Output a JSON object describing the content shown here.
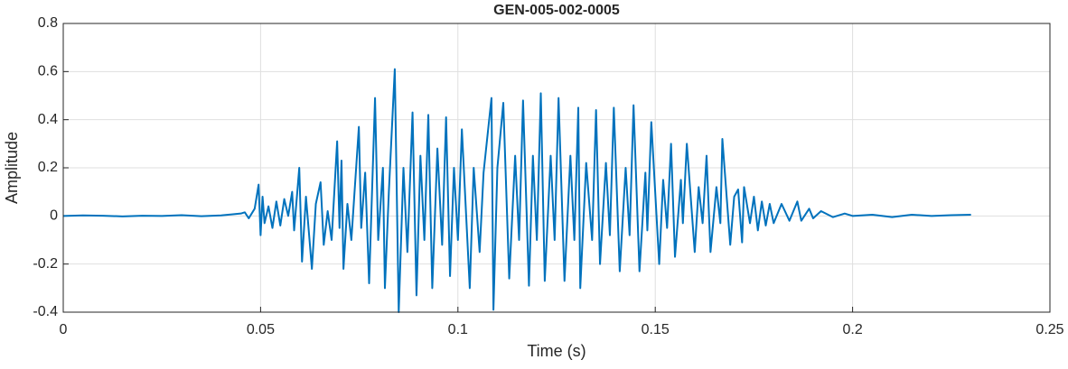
{
  "chart_data": {
    "type": "line",
    "title": "GEN-005-002-0005",
    "x_label": "Time (s)",
    "y_label": "Amplitude",
    "color": "#0072bd",
    "grid": true,
    "xlim": [
      0,
      0.25
    ],
    "xticks": [
      0,
      0.05,
      0.1,
      0.15,
      0.2,
      0.25
    ],
    "ylim": [
      -0.4,
      0.8
    ],
    "yticks": [
      -0.4,
      -0.2,
      0,
      0.2,
      0.4,
      0.6,
      0.8
    ],
    "x": [
      0,
      0.005,
      0.01,
      0.015,
      0.02,
      0.025,
      0.03,
      0.035,
      0.04,
      0.045,
      0.046,
      0.047,
      0.0485,
      0.0495,
      0.05,
      0.0505,
      0.051,
      0.052,
      0.053,
      0.054,
      0.055,
      0.056,
      0.057,
      0.058,
      0.0585,
      0.0598,
      0.0605,
      0.0615,
      0.063,
      0.064,
      0.0652,
      0.066,
      0.067,
      0.068,
      0.0694,
      0.07,
      0.0705,
      0.071,
      0.072,
      0.073,
      0.0749,
      0.0755,
      0.0765,
      0.0775,
      0.079,
      0.0798,
      0.081,
      0.0815,
      0.0825,
      0.084,
      0.085,
      0.0862,
      0.0872,
      0.0885,
      0.0895,
      0.0905,
      0.0915,
      0.0925,
      0.0935,
      0.0948,
      0.096,
      0.097,
      0.098,
      0.099,
      0.1,
      0.101,
      0.103,
      0.104,
      0.1055,
      0.1065,
      0.1085,
      0.109,
      0.11,
      0.1115,
      0.113,
      0.1145,
      0.1155,
      0.1165,
      0.118,
      0.119,
      0.12,
      0.121,
      0.122,
      0.1235,
      0.1245,
      0.1255,
      0.127,
      0.1285,
      0.1295,
      0.1305,
      0.131,
      0.1325,
      0.134,
      0.135,
      0.136,
      0.1375,
      0.1385,
      0.1395,
      0.141,
      0.1425,
      0.1435,
      0.1445,
      0.146,
      0.1475,
      0.148,
      0.149,
      0.151,
      0.152,
      0.153,
      0.154,
      0.155,
      0.1565,
      0.157,
      0.158,
      0.16,
      0.161,
      0.162,
      0.163,
      0.164,
      0.1655,
      0.1665,
      0.167,
      0.169,
      0.17,
      0.171,
      0.172,
      0.1725,
      0.174,
      0.175,
      0.176,
      0.177,
      0.178,
      0.179,
      0.18,
      0.182,
      0.184,
      0.186,
      0.187,
      0.189,
      0.19,
      0.192,
      0.195,
      0.198,
      0.2,
      0.205,
      0.21,
      0.215,
      0.22,
      0.225,
      0.23
    ],
    "values": [
      0,
      0.002,
      0.001,
      -0.002,
      0.001,
      0,
      0.003,
      -0.001,
      0.002,
      0.01,
      0.015,
      -0.01,
      0.03,
      0.13,
      -0.08,
      0.08,
      -0.03,
      0.04,
      -0.05,
      0.06,
      -0.04,
      0.07,
      0,
      0.1,
      -0.06,
      0.2,
      -0.19,
      0.08,
      -0.22,
      0.05,
      0.14,
      -0.12,
      0.02,
      -0.1,
      0.31,
      -0.05,
      0.23,
      -0.22,
      0.05,
      -0.1,
      0.37,
      -0.05,
      0.18,
      -0.28,
      0.49,
      -0.1,
      0.2,
      -0.3,
      0.1,
      0.61,
      -0.4,
      0.2,
      -0.15,
      0.43,
      -0.33,
      0.25,
      -0.1,
      0.42,
      -0.3,
      0.28,
      -0.12,
      0.41,
      -0.25,
      0.2,
      -0.1,
      0.36,
      -0.3,
      0.2,
      -0.15,
      0.18,
      0.49,
      -0.39,
      0.2,
      0.47,
      -0.26,
      0.25,
      -0.1,
      0.48,
      -0.29,
      0.25,
      -0.1,
      0.51,
      -0.27,
      0.25,
      -0.1,
      0.49,
      -0.27,
      0.25,
      -0.1,
      0.45,
      -0.3,
      0.22,
      -0.1,
      0.44,
      -0.2,
      0.22,
      -0.08,
      0.45,
      -0.23,
      0.2,
      -0.08,
      0.46,
      -0.23,
      0.18,
      -0.06,
      0.39,
      -0.2,
      0.15,
      -0.05,
      0.3,
      -0.17,
      0.15,
      -0.03,
      0.3,
      -0.15,
      0.12,
      -0.03,
      0.25,
      -0.15,
      0.12,
      -0.03,
      0.32,
      -0.12,
      0.08,
      0.11,
      -0.11,
      0.12,
      -0.03,
      0.08,
      -0.06,
      0.06,
      -0.04,
      0.05,
      -0.03,
      0.05,
      -0.02,
      0.06,
      -0.02,
      0.03,
      -0.01,
      0.02,
      -0.005,
      0.01,
      0,
      0.005,
      -0.005,
      0.005,
      0,
      0.003,
      0.005
    ]
  }
}
